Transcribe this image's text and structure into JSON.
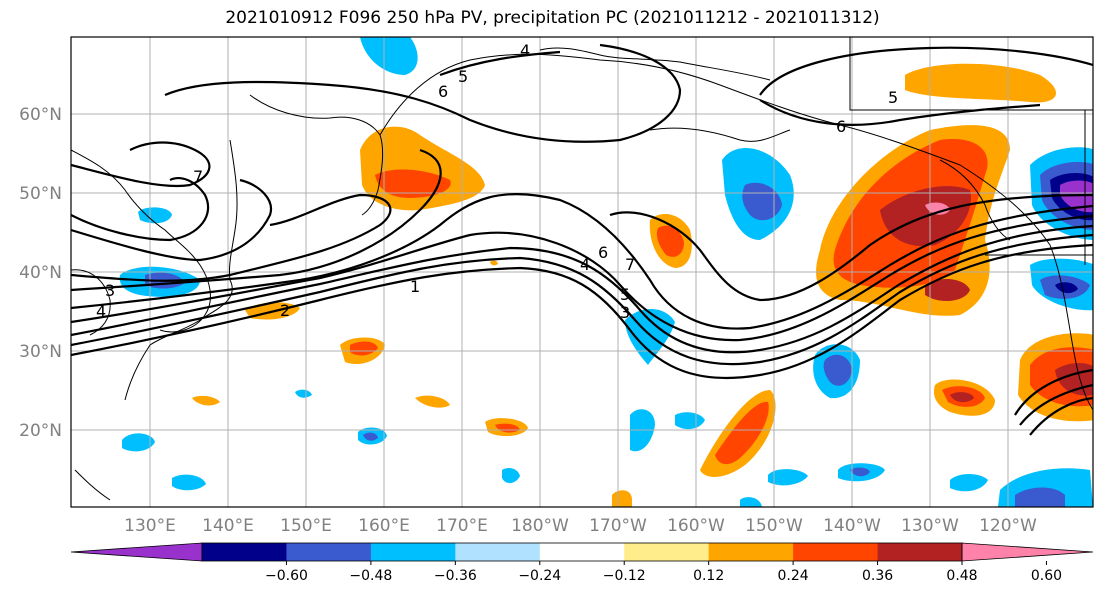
{
  "title": "2021010912 F096 250 hPa PV, precipitation PC (2021011212 - 2021011312)",
  "lat_labels": [
    "20°N",
    "30°N",
    "40°N",
    "50°N",
    "60°N"
  ],
  "lon_labels": [
    "130°E",
    "140°E",
    "150°E",
    "160°E",
    "170°E",
    "180°W",
    "170°W",
    "160°W",
    "150°W",
    "140°W",
    "130°W",
    "120°W"
  ],
  "colorbar": {
    "ticks": [
      "−0.60",
      "−0.48",
      "−0.36",
      "−0.24",
      "−0.12",
      "0.12",
      "0.24",
      "0.36",
      "0.48",
      "0.60"
    ],
    "colors": [
      "#9932cc",
      "#00008b",
      "#3a5bd0",
      "#00bfff",
      "#b0e2ff",
      "#ffffff",
      "#ffec8b",
      "#ffa500",
      "#ff4500",
      "#b22222",
      "#ff82ab"
    ]
  },
  "contour_labels": [
    "5",
    "6",
    "7",
    "5",
    "6",
    "7",
    "4",
    "6",
    "5",
    "1",
    "4",
    "3",
    "2",
    "4",
    "3"
  ]
}
